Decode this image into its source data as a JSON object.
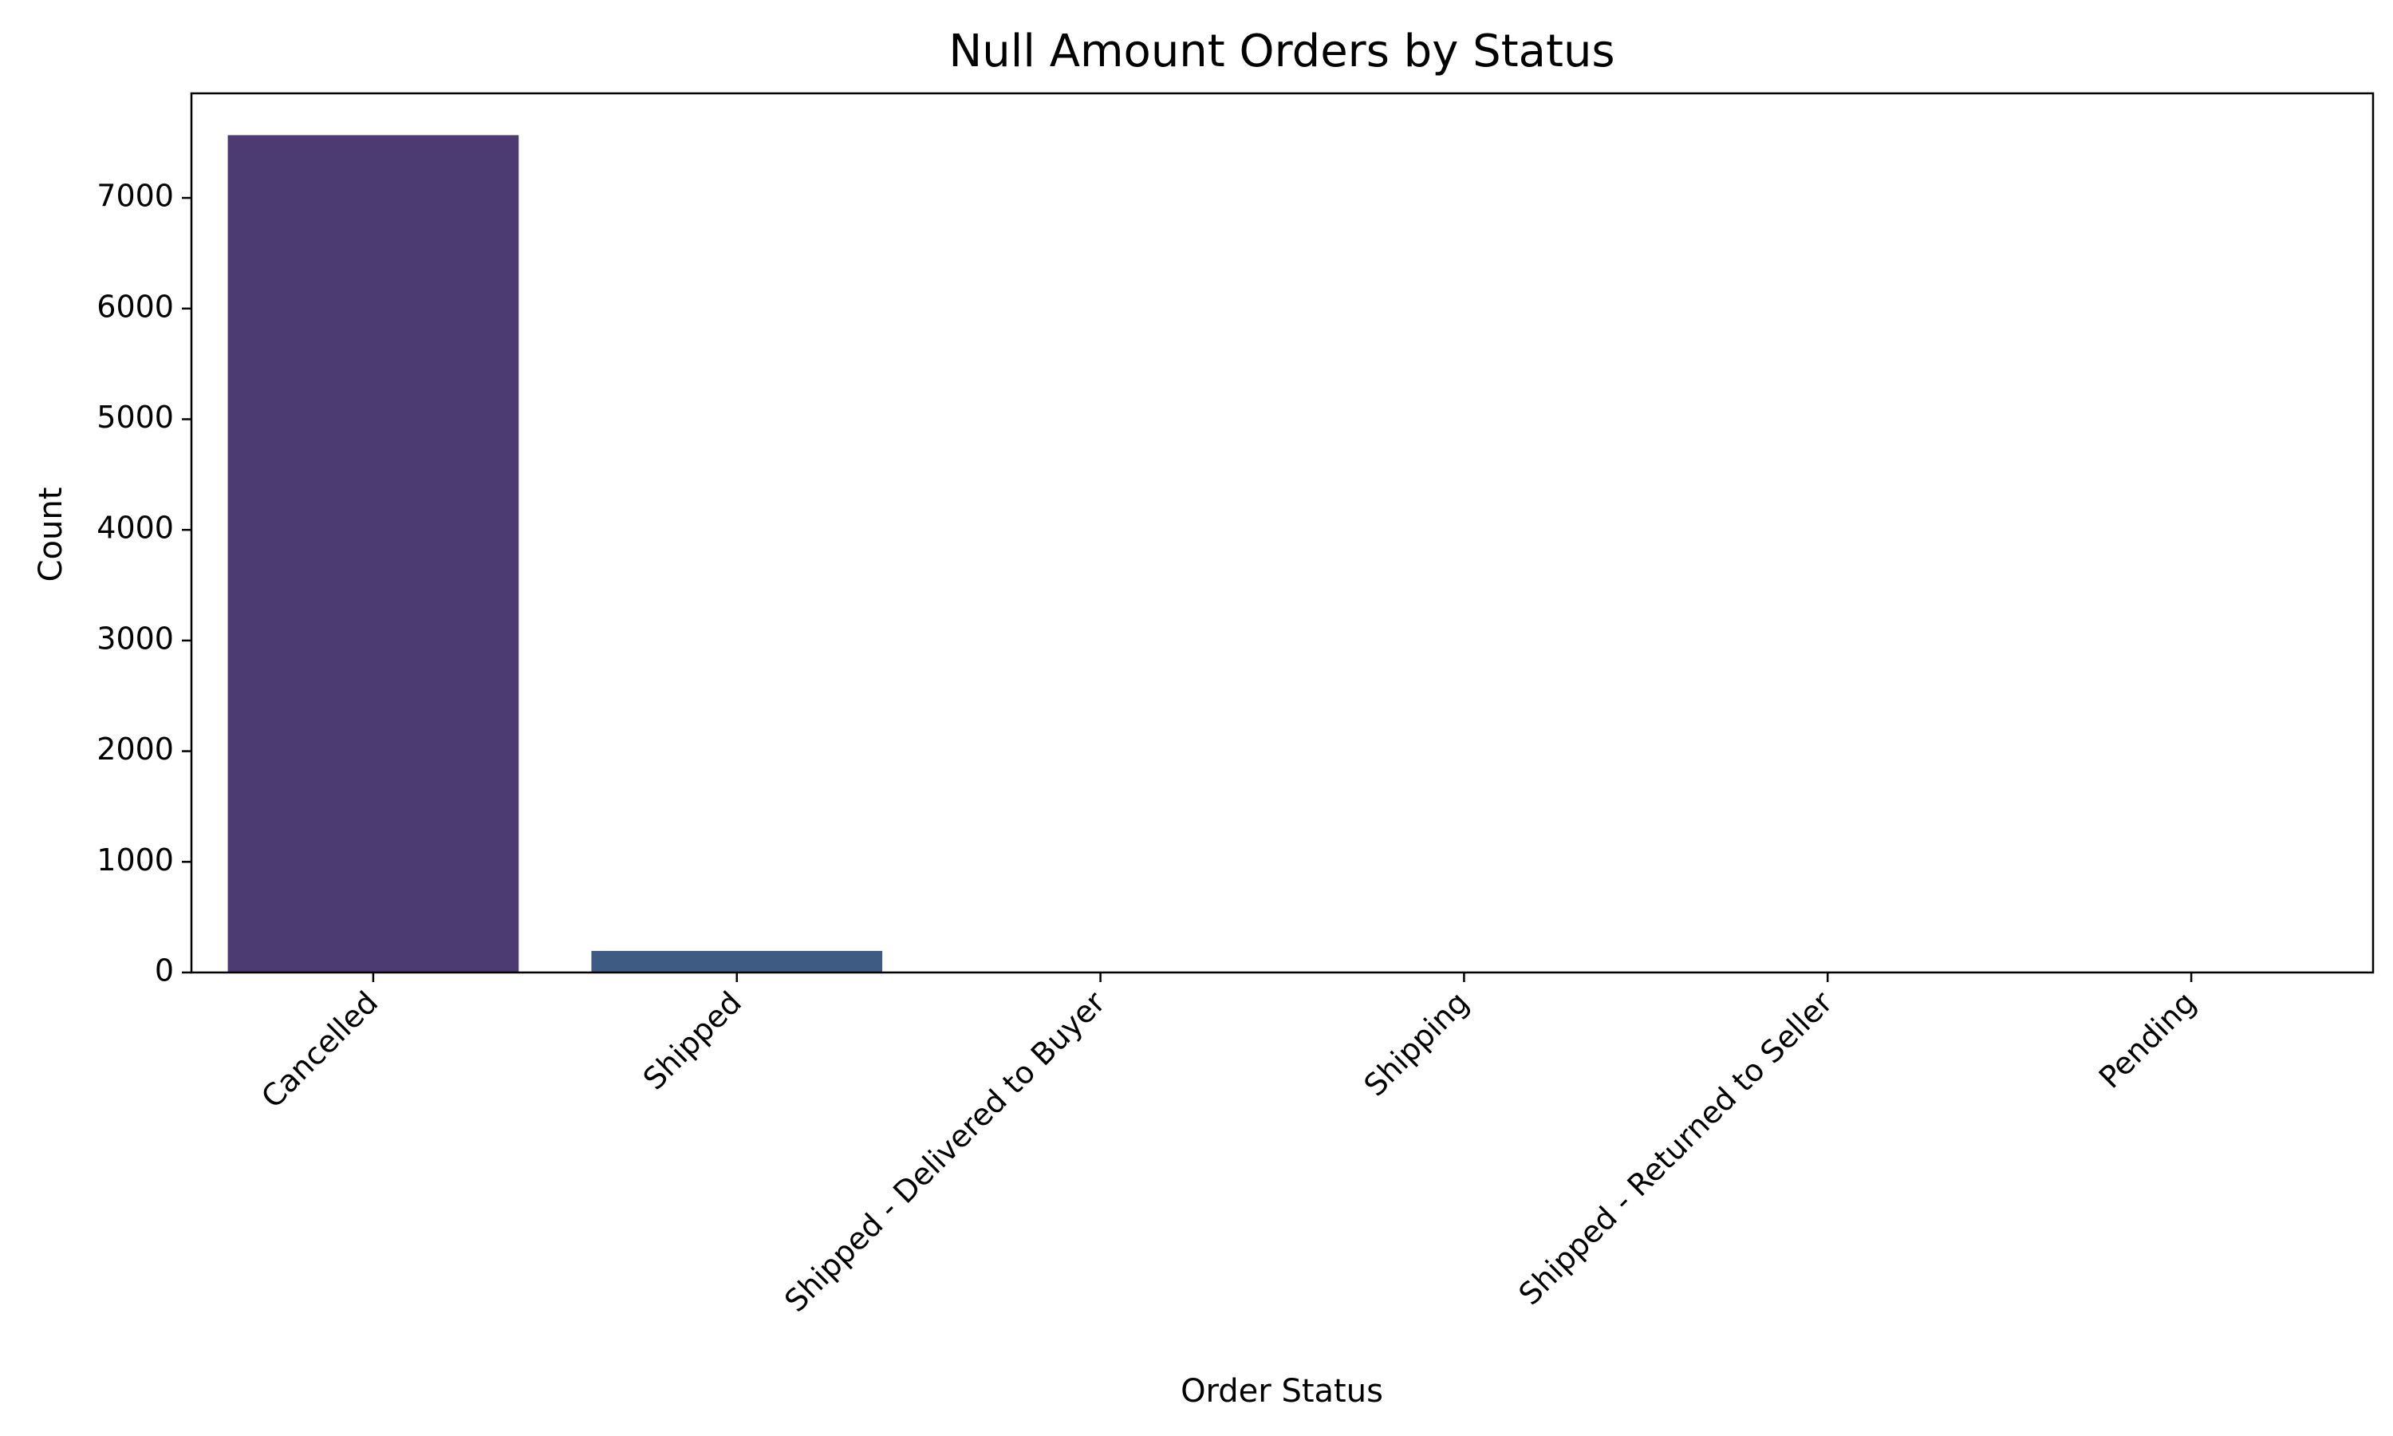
{
  "chart_data": {
    "type": "bar",
    "title": "Null Amount Orders by Status",
    "xlabel": "Order Status",
    "ylabel": "Count",
    "categories": [
      "Cancelled",
      "Shipped",
      "Shipped - Delivered to Buyer",
      "Shipping",
      "Shipped - Returned to Seller",
      "Pending"
    ],
    "values": [
      7567,
      195,
      4,
      3,
      1,
      1
    ],
    "colors": [
      "#4b3b72",
      "#3e5b84",
      "#30758d",
      "#29908d",
      "#3bab80",
      "#6cc464"
    ],
    "ylim": [
      0,
      7945
    ],
    "yticks": [
      0,
      1000,
      2000,
      3000,
      4000,
      5000,
      6000,
      7000
    ],
    "grid": false,
    "legend": "none"
  }
}
